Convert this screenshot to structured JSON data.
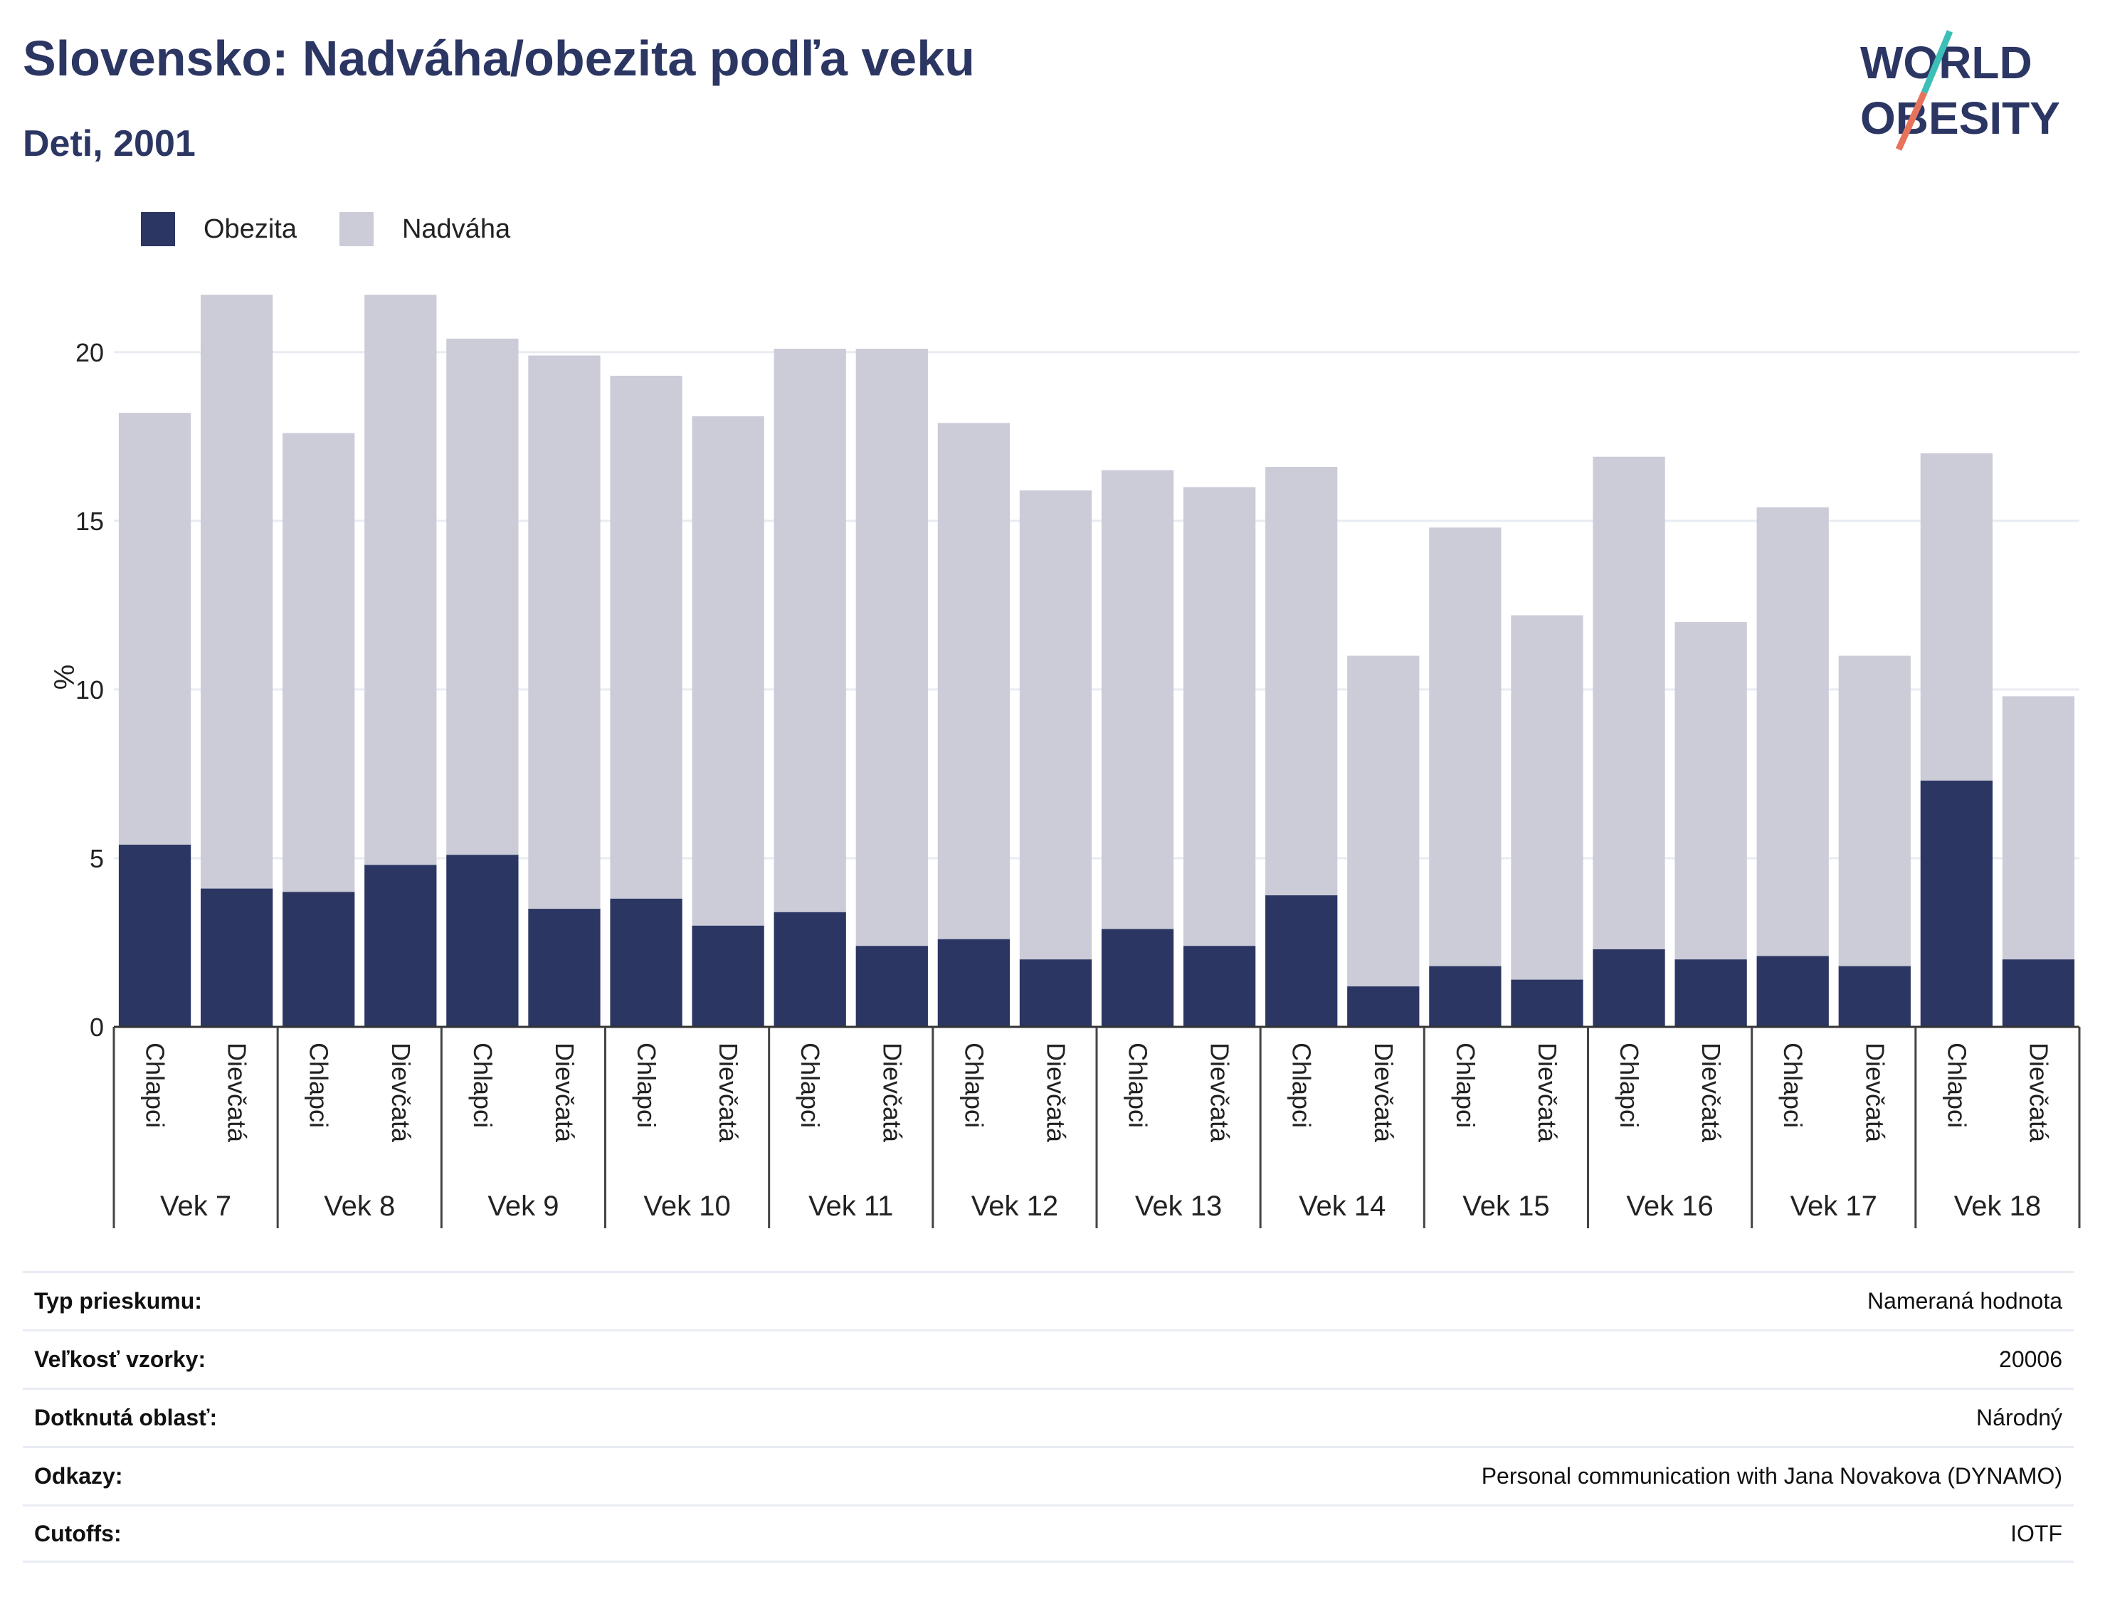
{
  "header": {
    "title": "Slovensko: Nadváha/obezita podľa veku",
    "subtitle": "Deti, 2001"
  },
  "logo": {
    "line1": "WORLD",
    "line2": "OBESITY"
  },
  "legend": [
    {
      "label": "Obezita",
      "color": "#2b3663"
    },
    {
      "label": "Nadváha",
      "color": "#cbccd8"
    }
  ],
  "chart_data": {
    "type": "bar",
    "stacked": true,
    "ylabel": "%",
    "ylim": [
      0,
      22
    ],
    "yticks": [
      0,
      5,
      10,
      15,
      20
    ],
    "grid": true,
    "legend_position": "top-left",
    "groups": [
      "Vek 7",
      "Vek 8",
      "Vek 9",
      "Vek 10",
      "Vek 11",
      "Vek 12",
      "Vek 13",
      "Vek 14",
      "Vek 15",
      "Vek 16",
      "Vek 17",
      "Vek 18"
    ],
    "subcategories": [
      "Chlapci",
      "Dievčatá"
    ],
    "series": [
      {
        "name": "Obezita",
        "color": "#2b3663",
        "values": [
          5.4,
          4.1,
          4.0,
          4.8,
          5.1,
          3.5,
          3.8,
          3.0,
          3.4,
          2.4,
          2.6,
          2.0,
          2.9,
          2.4,
          3.9,
          1.2,
          1.8,
          1.4,
          2.3,
          2.0,
          2.1,
          1.8,
          7.3,
          2.0
        ]
      },
      {
        "name": "Nadváha",
        "color": "#cbccd8",
        "values": [
          12.8,
          17.6,
          13.6,
          16.9,
          15.3,
          16.4,
          15.5,
          15.1,
          16.7,
          17.7,
          15.3,
          13.9,
          13.6,
          13.6,
          12.7,
          9.8,
          13.0,
          10.8,
          14.6,
          10.0,
          13.3,
          9.2,
          9.7,
          7.8
        ]
      }
    ]
  },
  "info_table": [
    {
      "label": "Typ prieskumu:",
      "value": "Nameraná hodnota"
    },
    {
      "label": "Veľkosť vzorky:",
      "value": "20006"
    },
    {
      "label": "Dotknutá oblasť:",
      "value": "Národný"
    },
    {
      "label": "Odkazy:",
      "value": "Personal communication with Jana Novakova (DYNAMO)"
    },
    {
      "label": "Cutoffs:",
      "value": "IOTF"
    }
  ]
}
